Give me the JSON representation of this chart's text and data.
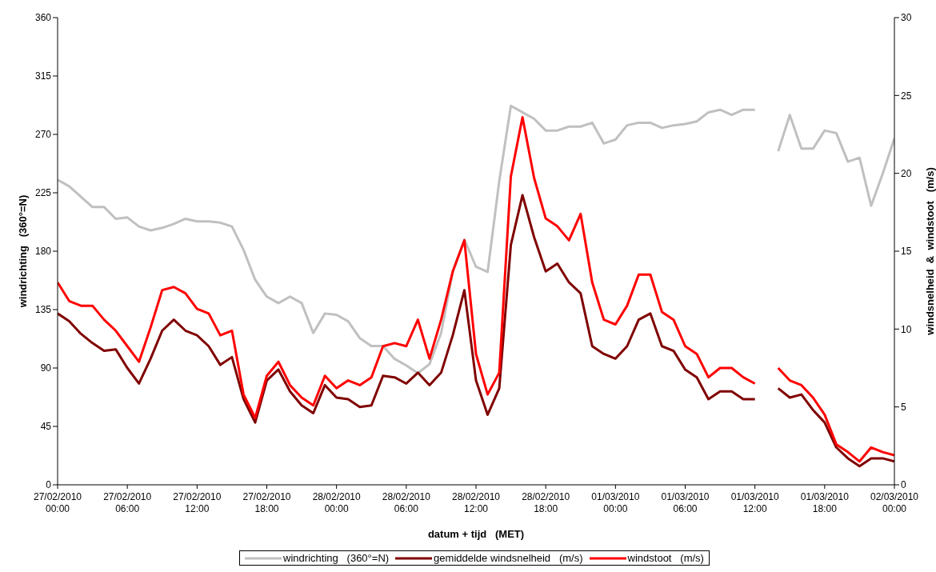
{
  "chart_data": {
    "type": "line",
    "xlabel": "datum + tijd   (MET)",
    "ylabel": "windrichting   (360°=N)",
    "y2label": "windsnelheid  &  windstoot   (m/s)",
    "x": [
      "2010-02-27T00:00",
      "2010-02-27T01:00",
      "2010-02-27T02:00",
      "2010-02-27T03:00",
      "2010-02-27T04:00",
      "2010-02-27T05:00",
      "2010-02-27T06:00",
      "2010-02-27T07:00",
      "2010-02-27T08:00",
      "2010-02-27T09:00",
      "2010-02-27T10:00",
      "2010-02-27T11:00",
      "2010-02-27T12:00",
      "2010-02-27T13:00",
      "2010-02-27T14:00",
      "2010-02-27T15:00",
      "2010-02-27T16:00",
      "2010-02-27T17:00",
      "2010-02-27T18:00",
      "2010-02-27T19:00",
      "2010-02-27T20:00",
      "2010-02-27T21:00",
      "2010-02-27T22:00",
      "2010-02-27T23:00",
      "2010-02-28T00:00",
      "2010-02-28T01:00",
      "2010-02-28T02:00",
      "2010-02-28T03:00",
      "2010-02-28T04:00",
      "2010-02-28T05:00",
      "2010-02-28T06:00",
      "2010-02-28T07:00",
      "2010-02-28T08:00",
      "2010-02-28T09:00",
      "2010-02-28T10:00",
      "2010-02-28T11:00",
      "2010-02-28T12:00",
      "2010-02-28T13:00",
      "2010-02-28T14:00",
      "2010-02-28T15:00",
      "2010-02-28T16:00",
      "2010-02-28T17:00",
      "2010-02-28T18:00",
      "2010-02-28T19:00",
      "2010-02-28T20:00",
      "2010-02-28T21:00",
      "2010-02-28T22:00",
      "2010-02-28T23:00",
      "2010-03-01T00:00",
      "2010-03-01T01:00",
      "2010-03-01T02:00",
      "2010-03-01T03:00",
      "2010-03-01T04:00",
      "2010-03-01T05:00",
      "2010-03-01T06:00",
      "2010-03-01T07:00",
      "2010-03-01T08:00",
      "2010-03-01T09:00",
      "2010-03-01T10:00",
      "2010-03-01T11:00",
      "2010-03-01T12:00",
      "2010-03-01T13:00",
      "2010-03-01T14:00",
      "2010-03-01T15:00",
      "2010-03-01T16:00",
      "2010-03-01T17:00",
      "2010-03-01T18:00",
      "2010-03-01T19:00",
      "2010-03-01T20:00",
      "2010-03-01T21:00",
      "2010-03-01T22:00",
      "2010-03-01T23:00",
      "2010-03-02T00:00"
    ],
    "series": [
      {
        "name": "windrichting   (360°=N)",
        "color": "#c0c0c0",
        "values": [
          235,
          230,
          222,
          214,
          214,
          205,
          206,
          199,
          196,
          198,
          201,
          205,
          203,
          203,
          202,
          199,
          181,
          158,
          145,
          140,
          145,
          140,
          117,
          132,
          131,
          126,
          113,
          107,
          107,
          97,
          92,
          86,
          93,
          117,
          164,
          189,
          168,
          164,
          234,
          292,
          287,
          282,
          273,
          273,
          276,
          276,
          279,
          263,
          266,
          277,
          279,
          279,
          275,
          277,
          278,
          280,
          287,
          289,
          285,
          289,
          289,
          null,
          257,
          285,
          259,
          259,
          273,
          271,
          249,
          252,
          215,
          240,
          267
        ]
      },
      {
        "name": "gemiddelde windsnelheid   (m/s)",
        "color": "#800000",
        "axis": "y2",
        "values": [
          11.0,
          10.5,
          9.7,
          9.1,
          8.6,
          8.7,
          7.5,
          6.5,
          8.1,
          9.9,
          10.6,
          9.9,
          9.6,
          8.9,
          7.7,
          8.2,
          5.5,
          4.0,
          6.7,
          7.4,
          6.0,
          5.1,
          4.6,
          6.4,
          5.6,
          5.5,
          5.0,
          5.1,
          7.0,
          6.9,
          6.5,
          7.2,
          6.4,
          7.2,
          9.6,
          12.5,
          6.7,
          4.5,
          6.2,
          15.4,
          18.6,
          15.9,
          13.7,
          14.2,
          13.0,
          12.3,
          8.9,
          8.4,
          8.1,
          8.9,
          10.6,
          11.0,
          8.9,
          8.6,
          7.4,
          6.9,
          5.5,
          6.0,
          6.0,
          5.5,
          5.5,
          null,
          6.2,
          5.6,
          5.8,
          4.8,
          4.0,
          2.4,
          1.7,
          1.2,
          1.7,
          1.7,
          1.5
        ]
      },
      {
        "name": "windstoot   (m/s)",
        "color": "#ff0000",
        "axis": "y2",
        "values": [
          13.0,
          11.8,
          11.5,
          11.5,
          10.6,
          9.9,
          8.9,
          7.9,
          10.1,
          12.5,
          12.7,
          12.3,
          11.3,
          11.0,
          9.6,
          9.9,
          5.8,
          4.3,
          7.0,
          7.9,
          6.4,
          5.6,
          5.1,
          7.0,
          6.2,
          6.7,
          6.4,
          6.9,
          8.9,
          9.1,
          8.9,
          10.6,
          8.1,
          10.6,
          13.7,
          15.7,
          8.4,
          5.8,
          7.2,
          19.8,
          23.6,
          19.7,
          17.1,
          16.6,
          15.7,
          17.4,
          13.0,
          10.6,
          10.3,
          11.5,
          13.5,
          13.5,
          11.1,
          10.6,
          8.9,
          8.4,
          6.9,
          7.5,
          7.5,
          6.9,
          6.5,
          null,
          7.5,
          6.7,
          6.4,
          5.6,
          4.5,
          2.6,
          2.1,
          1.5,
          2.4,
          2.1,
          1.9
        ]
      }
    ],
    "xlim": [
      "2010-02-27T00:00",
      "2010-03-02T00:00"
    ],
    "xticks": [
      {
        "value": "2010-02-27T00:00",
        "label": "27/02/2010 00:00"
      },
      {
        "value": "2010-02-27T06:00",
        "label": "27/02/2010 06:00"
      },
      {
        "value": "2010-02-27T12:00",
        "label": "27/02/2010 12:00"
      },
      {
        "value": "2010-02-27T18:00",
        "label": "27/02/2010 18:00"
      },
      {
        "value": "2010-02-28T00:00",
        "label": "28/02/2010 00:00"
      },
      {
        "value": "2010-02-28T06:00",
        "label": "28/02/2010 06:00"
      },
      {
        "value": "2010-02-28T12:00",
        "label": "28/02/2010 12:00"
      },
      {
        "value": "2010-02-28T18:00",
        "label": "28/02/2010 18:00"
      },
      {
        "value": "2010-03-01T00:00",
        "label": "01/03/2010 00:00"
      },
      {
        "value": "2010-03-01T06:00",
        "label": "01/03/2010 06:00"
      },
      {
        "value": "2010-03-01T12:00",
        "label": "01/03/2010 12:00"
      },
      {
        "value": "2010-03-01T18:00",
        "label": "01/03/2010 18:00"
      },
      {
        "value": "2010-03-02T00:00",
        "label": "02/03/2010 00:00"
      }
    ],
    "ylim": [
      0,
      360
    ],
    "yticks": [
      0,
      45,
      90,
      135,
      180,
      225,
      270,
      315,
      360
    ],
    "y2lim": [
      0,
      30
    ],
    "y2ticks": [
      0,
      5,
      10,
      15,
      20,
      25,
      30
    ],
    "grid": false,
    "legend": "bottom",
    "marker": "none",
    "line_style": "solid"
  }
}
